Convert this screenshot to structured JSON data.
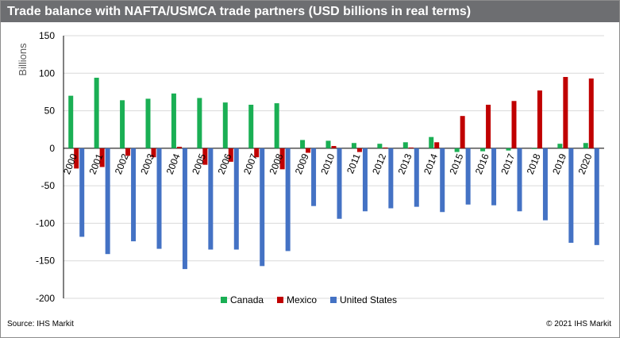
{
  "title": "Trade balance with NAFTA/USMCA trade partners (USD billions in real terms)",
  "source": "Source: IHS Markit",
  "copyright": "© 2021 IHS Markit",
  "colors": {
    "canada": "#1aaf54",
    "mexico": "#c00000",
    "united_states": "#4472c4"
  },
  "chart_data": {
    "type": "bar",
    "title": "Trade balance with NAFTA/USMCA trade partners (USD billions in real terms)",
    "ylabel": "Billions",
    "xlabel": "",
    "ylim": [
      -200,
      150
    ],
    "yticks": [
      150,
      100,
      50,
      0,
      -50,
      -100,
      -150,
      -200
    ],
    "grid": true,
    "legend": "bottom",
    "categories": [
      "2000",
      "2001",
      "2002",
      "2003",
      "2004",
      "2005",
      "2006",
      "2007",
      "2008",
      "2009",
      "2010",
      "2011",
      "2012",
      "2013",
      "2014",
      "2015",
      "2016",
      "2017",
      "2018",
      "2019",
      "2020"
    ],
    "series": [
      {
        "name": "Canada",
        "values": [
          70,
          94,
          64,
          66,
          73,
          67,
          61,
          58,
          60,
          11,
          10,
          7,
          6,
          8,
          15,
          -5,
          -4,
          -3,
          -1,
          6,
          7
        ]
      },
      {
        "name": "Mexico",
        "values": [
          -27,
          -25,
          -10,
          -12,
          2,
          -22,
          -18,
          -12,
          -28,
          -6,
          3,
          -5,
          1,
          1,
          8,
          43,
          58,
          63,
          77,
          95,
          93
        ]
      },
      {
        "name": "United States",
        "values": [
          -118,
          -141,
          -124,
          -134,
          -161,
          -135,
          -135,
          -157,
          -137,
          -77,
          -94,
          -84,
          -80,
          -78,
          -85,
          -75,
          -76,
          -84,
          -96,
          -126,
          -129
        ]
      }
    ]
  }
}
